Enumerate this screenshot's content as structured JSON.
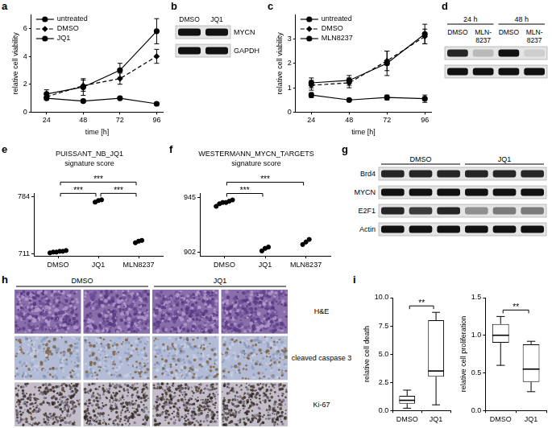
{
  "chart_data": [
    {
      "panel": "a",
      "type": "line",
      "x": [
        24,
        48,
        72,
        96
      ],
      "xlim": [
        14,
        100
      ],
      "xticks": [
        24,
        48,
        72,
        96
      ],
      "ylim": [
        0,
        7
      ],
      "yticks": [
        0,
        2,
        4,
        6
      ],
      "x_label": "time [h]",
      "y_label": "relative cell viability",
      "grid": false,
      "legend": "top-left",
      "series": [
        {
          "name": "untreated",
          "color": "#000000",
          "marker": "circle",
          "line_style": "solid",
          "values": [
            1.3,
            1.8,
            3.0,
            5.8
          ],
          "errors": [
            0.3,
            0.6,
            0.5,
            0.9
          ]
        },
        {
          "name": "DMSO",
          "color": "#000000",
          "marker": "diamond",
          "line_style": "dashed",
          "values": [
            1.1,
            1.9,
            2.4,
            4.0
          ],
          "errors": [
            0.2,
            0.4,
            0.4,
            0.5
          ]
        },
        {
          "name": "JQ1",
          "color": "#000000",
          "marker": "circle",
          "line_style": "solid",
          "values": [
            1.0,
            0.8,
            1.0,
            0.6
          ],
          "errors": [
            0.1,
            0.1,
            0.1,
            0.1
          ]
        }
      ]
    },
    {
      "panel": "c",
      "type": "line",
      "x": [
        24,
        48,
        72,
        96
      ],
      "xlim": [
        14,
        100
      ],
      "xticks": [
        24,
        48,
        72,
        96
      ],
      "ylim": [
        0,
        4
      ],
      "yticks": [
        0,
        1,
        2,
        3
      ],
      "x_label": "time [h]",
      "y_label": "relative cell viability",
      "grid": false,
      "legend": "top-left",
      "series": [
        {
          "name": "untreated",
          "color": "#000000",
          "marker": "circle",
          "line_style": "solid",
          "values": [
            1.2,
            1.3,
            2.0,
            3.2
          ],
          "errors": [
            0.2,
            0.2,
            0.5,
            0.4
          ]
        },
        {
          "name": "DMSO",
          "color": "#000000",
          "marker": "diamond",
          "line_style": "dashed",
          "values": [
            1.1,
            1.2,
            2.1,
            3.1
          ],
          "errors": [
            0.2,
            0.2,
            0.4,
            0.3
          ]
        },
        {
          "name": "MLN8237",
          "color": "#000000",
          "marker": "circle",
          "line_style": "solid",
          "values": [
            0.7,
            0.5,
            0.6,
            0.55
          ],
          "errors": [
            0.1,
            0.05,
            0.1,
            0.15
          ]
        }
      ]
    },
    {
      "panel": "e",
      "type": "scatter",
      "title": "PUISSANT_NB_JQ1",
      "subtitle": "signature score",
      "categories": [
        "DMSO",
        "JQ1",
        "MLN8237"
      ],
      "values": [
        [
          712,
          713,
          713,
          714,
          714,
          715
        ],
        [
          777,
          779,
          780
        ],
        [
          725,
          727,
          728
        ]
      ],
      "color": "#000000",
      "ylim": [
        708,
        788
      ],
      "yticks": [
        711,
        784
      ],
      "grid": false,
      "annotations": [
        {
          "text": "***",
          "between": [
            "DMSO",
            "JQ1"
          ]
        },
        {
          "text": "***",
          "between": [
            "JQ1",
            "MLN8237"
          ]
        },
        {
          "text": "***",
          "between": [
            "DMSO",
            "MLN8237"
          ]
        }
      ]
    },
    {
      "panel": "f",
      "type": "scatter",
      "title": "WESTERMANN_MYCN_TARGETS",
      "subtitle": "signature score",
      "categories": [
        "DMSO",
        "JQ1",
        "MLN8237"
      ],
      "values": [
        [
          938,
          940,
          941,
          941,
          942,
          943
        ],
        [
          903,
          905,
          906
        ],
        [
          908,
          910,
          912
        ]
      ],
      "color": "#000000",
      "ylim": [
        899,
        948
      ],
      "yticks": [
        902,
        945
      ],
      "grid": false,
      "annotations": [
        {
          "text": "***",
          "between": [
            "DMSO",
            "JQ1"
          ]
        },
        {
          "text": "***",
          "between": [
            "DMSO",
            "MLN8237"
          ]
        }
      ]
    },
    {
      "panel": "i",
      "type": "box",
      "y_label": "relative cell death",
      "categories": [
        "DMSO",
        "JQ1"
      ],
      "boxes": [
        {
          "min": 0.2,
          "q1": 0.6,
          "median": 0.9,
          "q3": 1.3,
          "max": 1.8
        },
        {
          "min": 0.5,
          "q1": 3.0,
          "median": 3.5,
          "q3": 8.0,
          "max": 8.7
        }
      ],
      "ylim": [
        0,
        10
      ],
      "yticks": [
        {
          "value": 0,
          "label": "0.0"
        },
        2.5,
        {
          "value": 5,
          "label": "5.0"
        },
        7.5,
        {
          "value": 10,
          "label": "10.0"
        }
      ],
      "grid": false,
      "annotations": [
        {
          "text": "**",
          "between": [
            "DMSO",
            "JQ1"
          ]
        }
      ]
    },
    {
      "type": "box",
      "y_label": "relative cell proliferation",
      "categories": [
        "DMSO",
        "JQ1"
      ],
      "boxes": [
        {
          "min": 0.6,
          "q1": 0.9,
          "median": 1.0,
          "q3": 1.15,
          "max": 1.25
        },
        {
          "min": 0.25,
          "q1": 0.38,
          "median": 0.55,
          "q3": 0.88,
          "max": 0.92
        }
      ],
      "ylim": [
        0,
        1.5
      ],
      "yticks": [
        {
          "value": 0,
          "label": "0.0"
        },
        0.5,
        {
          "value": 1,
          "label": "1.0"
        },
        1.5
      ],
      "grid": false,
      "annotations": [
        {
          "text": "**",
          "between": [
            "DMSO",
            "JQ1"
          ]
        }
      ]
    }
  ],
  "blots": [
    {
      "panel": "b",
      "columns": [
        "DMSO",
        "JQ1"
      ],
      "rows": [
        {
          "label": "MYCN",
          "intensity": [
            1,
            1
          ]
        },
        {
          "label": "GAPDH",
          "intensity": [
            1,
            1
          ]
        }
      ]
    },
    {
      "panel": "d",
      "groups": [
        {
          "label": "24 h",
          "span": 2
        },
        {
          "label": "48 h",
          "span": 2
        }
      ],
      "columns": [
        "DMSO",
        "MLN-8237",
        "DMSO",
        "MLN-8237"
      ],
      "rows": [
        {
          "intensity": [
            0.9,
            0.2,
            1,
            0.1
          ]
        },
        {
          "intensity": [
            1,
            1,
            1,
            1
          ]
        }
      ]
    },
    {
      "panel": "g",
      "groups": [
        {
          "label": "DMSO",
          "span": 3
        },
        {
          "label": "JQ1",
          "span": 3
        }
      ],
      "columns": [
        null,
        null,
        null,
        null,
        null,
        null
      ],
      "rows": [
        {
          "label": "Brd4",
          "intensity": [
            0.9,
            0.9,
            0.9,
            0.9,
            0.9,
            0.9
          ]
        },
        {
          "label": "MYCN",
          "intensity": [
            1,
            1,
            1,
            1,
            1,
            1
          ]
        },
        {
          "label": "E2F1",
          "intensity": [
            0.9,
            0.8,
            0.9,
            0.4,
            0.5,
            0.5
          ]
        },
        {
          "label": "Actin",
          "intensity": [
            1,
            1,
            1,
            1,
            1,
            1
          ]
        }
      ]
    }
  ],
  "histology": {
    "panel": "h",
    "groups": [
      {
        "label": "DMSO",
        "span": 2
      },
      {
        "label": "JQ1",
        "span": 2
      }
    ],
    "rows": [
      "H&E",
      "cleaved caspase 3",
      "Ki-67"
    ]
  }
}
